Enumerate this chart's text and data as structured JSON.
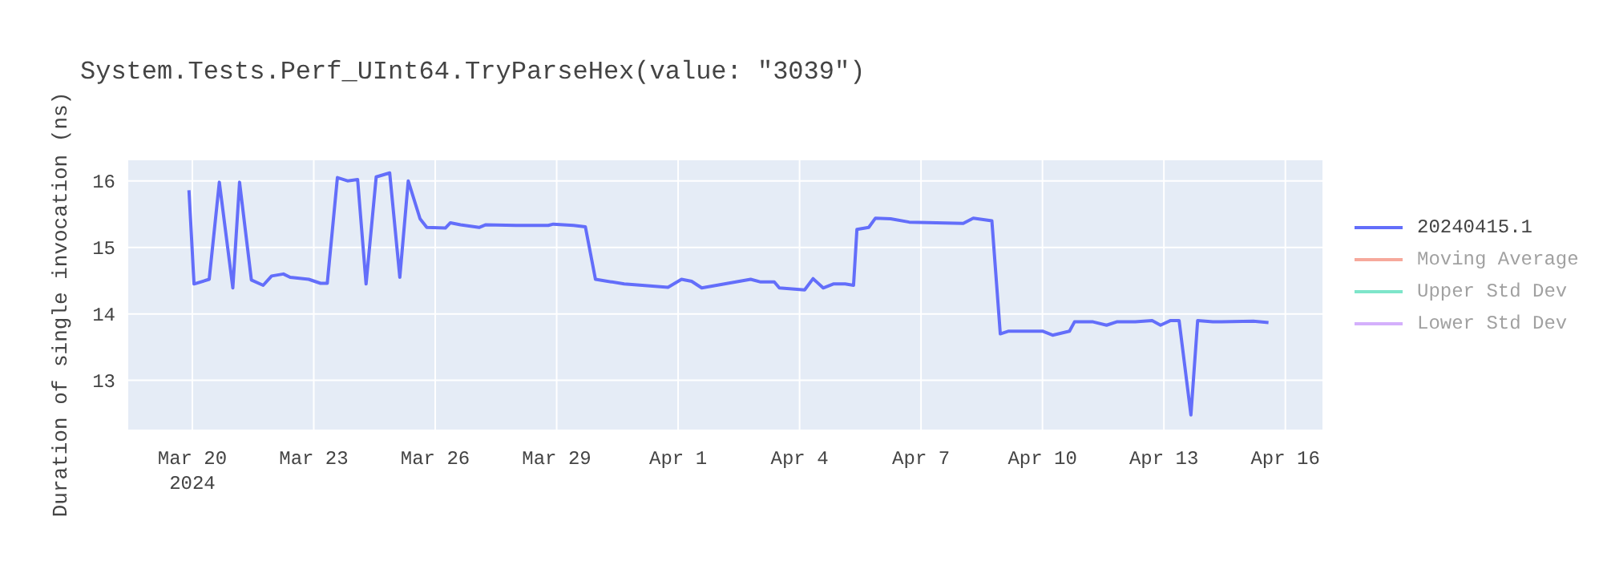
{
  "chart_data": {
    "type": "line",
    "title": "System.Tests.Perf_UInt64.TryParseHex(value: \"3039\")",
    "ylabel": "Duration of single invocation (ns)",
    "x": [
      "2024-03-19T22:00",
      "2024-03-20T01:00",
      "2024-03-20T10:00",
      "2024-03-20T16:00",
      "2024-03-21T00:00",
      "2024-03-21T04:00",
      "2024-03-21T11:00",
      "2024-03-21T18:00",
      "2024-03-21T23:00",
      "2024-03-22T06:00",
      "2024-03-22T10:00",
      "2024-03-22T21:00",
      "2024-03-23T04:00",
      "2024-03-23T08:00",
      "2024-03-23T14:00",
      "2024-03-23T20:00",
      "2024-03-24T02:00",
      "2024-03-24T07:00",
      "2024-03-24T13:00",
      "2024-03-24T21:00",
      "2024-03-25T03:00",
      "2024-03-25T08:00",
      "2024-03-25T15:00",
      "2024-03-25T19:00",
      "2024-03-26T06:00",
      "2024-03-26T09:00",
      "2024-03-26T15:00",
      "2024-03-27T02:00",
      "2024-03-27T06:00",
      "2024-03-28T00:00",
      "2024-03-28T19:00",
      "2024-03-28T22:00",
      "2024-03-29T10:00",
      "2024-03-29T17:00",
      "2024-03-29T23:00",
      "2024-03-30T16:00",
      "2024-03-31T18:00",
      "2024-04-01T02:00",
      "2024-04-01T08:00",
      "2024-04-01T14:00",
      "2024-04-02T19:00",
      "2024-04-03T01:00",
      "2024-04-03T09:00",
      "2024-04-03T12:00",
      "2024-04-04T03:00",
      "2024-04-04T08:00",
      "2024-04-04T14:00",
      "2024-04-04T20:00",
      "2024-04-05T03:00",
      "2024-04-05T08:00",
      "2024-04-05T10:00",
      "2024-04-05T17:00",
      "2024-04-05T21:00",
      "2024-04-06T06:00",
      "2024-04-06T17:00",
      "2024-04-08T01:00",
      "2024-04-08T07:00",
      "2024-04-08T18:00",
      "2024-04-08T23:00",
      "2024-04-09T04:00",
      "2024-04-10T00:00",
      "2024-04-10T06:00",
      "2024-04-10T16:00",
      "2024-04-10T19:00",
      "2024-04-11T06:00",
      "2024-04-11T14:00",
      "2024-04-11T20:00",
      "2024-04-12T07:00",
      "2024-04-12T17:00",
      "2024-04-12T22:00",
      "2024-04-13T04:00",
      "2024-04-13T09:00",
      "2024-04-13T16:00",
      "2024-04-13T20:00",
      "2024-04-14T05:00",
      "2024-04-15T05:00",
      "2024-04-15T14:00"
    ],
    "series": [
      {
        "name": "20240415.1",
        "color": "#636efa",
        "values": [
          15.86,
          14.45,
          14.52,
          15.98,
          14.39,
          15.98,
          14.51,
          14.43,
          14.57,
          14.6,
          14.55,
          14.52,
          14.46,
          14.46,
          16.05,
          16.0,
          16.02,
          14.45,
          16.06,
          16.12,
          14.55,
          16.0,
          15.43,
          15.3,
          15.29,
          15.37,
          15.34,
          15.3,
          15.34,
          15.33,
          15.33,
          15.35,
          15.33,
          15.31,
          14.52,
          14.45,
          14.4,
          14.52,
          14.49,
          14.39,
          14.52,
          14.48,
          14.48,
          14.39,
          14.36,
          14.53,
          14.39,
          14.45,
          14.45,
          14.43,
          15.27,
          15.3,
          15.44,
          15.43,
          15.38,
          15.36,
          15.44,
          15.4,
          13.7,
          13.74,
          13.74,
          13.68,
          13.74,
          13.88,
          13.88,
          13.83,
          13.88,
          13.88,
          13.9,
          13.83,
          13.9,
          13.9,
          12.48,
          13.9,
          13.88,
          13.89,
          13.87
        ]
      },
      {
        "name": "Moving Average",
        "color": "#ef553b",
        "values": [
          null,
          null,
          null,
          null,
          null,
          null,
          null,
          null,
          null,
          null,
          null,
          null,
          null,
          null,
          null,
          null,
          null,
          null,
          null,
          null,
          null,
          null,
          null,
          null,
          null,
          null,
          null,
          null,
          null,
          null,
          null,
          null,
          null,
          null,
          null,
          null,
          null,
          null,
          null,
          null,
          null,
          null,
          null,
          null,
          null,
          null,
          null,
          null,
          null,
          null,
          null,
          null,
          null,
          null,
          null,
          null,
          null,
          null,
          null,
          null,
          null,
          null,
          null,
          null,
          null,
          null,
          null,
          null,
          null,
          null,
          null,
          null,
          null,
          null,
          null,
          null,
          null
        ]
      },
      {
        "name": "Upper Std Dev",
        "color": "#00cc96",
        "values": [
          null,
          null,
          null,
          null,
          null,
          null,
          null,
          null,
          null,
          null,
          null,
          null,
          null,
          null,
          null,
          null,
          null,
          null,
          null,
          null,
          null,
          null,
          null,
          null,
          null,
          null,
          null,
          null,
          null,
          null,
          null,
          null,
          null,
          null,
          null,
          null,
          null,
          null,
          null,
          null,
          null,
          null,
          null,
          null,
          null,
          null,
          null,
          null,
          null,
          null,
          null,
          null,
          null,
          null,
          null,
          null,
          null,
          null,
          null,
          null,
          null,
          null,
          null,
          null,
          null,
          null,
          null,
          null,
          null,
          null,
          null,
          null,
          null,
          null,
          null,
          null,
          null
        ]
      },
      {
        "name": "Lower Std Dev",
        "color": "#ab63fa",
        "values": [
          null,
          null,
          null,
          null,
          null,
          null,
          null,
          null,
          null,
          null,
          null,
          null,
          null,
          null,
          null,
          null,
          null,
          null,
          null,
          null,
          null,
          null,
          null,
          null,
          null,
          null,
          null,
          null,
          null,
          null,
          null,
          null,
          null,
          null,
          null,
          null,
          null,
          null,
          null,
          null,
          null,
          null,
          null,
          null,
          null,
          null,
          null,
          null,
          null,
          null,
          null,
          null,
          null,
          null,
          null,
          null,
          null,
          null,
          null,
          null,
          null,
          null,
          null,
          null,
          null,
          null,
          null,
          null,
          null,
          null,
          null,
          null,
          null,
          null,
          null,
          null,
          null
        ]
      }
    ],
    "xlim": [
      "2024-03-18T10:00",
      "2024-04-16T22:00"
    ],
    "xticks": [
      {
        "value": "2024-03-20",
        "label": "Mar 20\n2024"
      },
      {
        "value": "2024-03-23",
        "label": "Mar 23"
      },
      {
        "value": "2024-03-26",
        "label": "Mar 26"
      },
      {
        "value": "2024-03-29",
        "label": "Mar 29"
      },
      {
        "value": "2024-04-01",
        "label": "Apr 1"
      },
      {
        "value": "2024-04-04",
        "label": "Apr 4"
      },
      {
        "value": "2024-04-07",
        "label": "Apr 7"
      },
      {
        "value": "2024-04-10",
        "label": "Apr 10"
      },
      {
        "value": "2024-04-13",
        "label": "Apr 13"
      },
      {
        "value": "2024-04-16",
        "label": "Apr 16"
      }
    ],
    "ylim": [
      12.26,
      16.31
    ],
    "yticks": [
      13,
      14,
      15,
      16
    ],
    "grid": true,
    "legend": "right"
  }
}
